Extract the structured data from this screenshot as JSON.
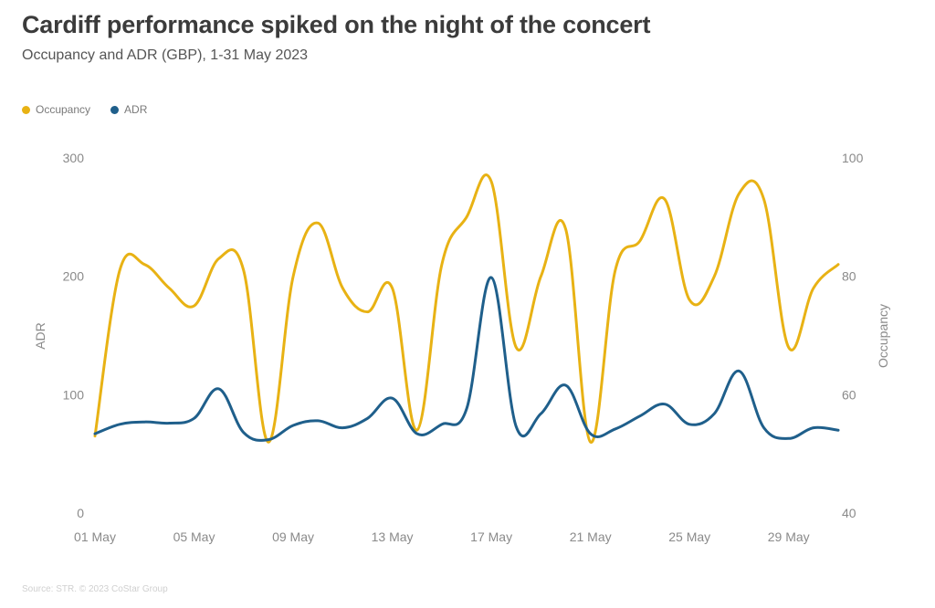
{
  "chart_data": {
    "type": "line",
    "title": "Cardiff performance spiked on the night of the concert",
    "subtitle": "Occupancy and ADR (GBP), 1-31 May 2023",
    "x": [
      "01 May",
      "02 May",
      "03 May",
      "04 May",
      "05 May",
      "06 May",
      "07 May",
      "08 May",
      "09 May",
      "10 May",
      "11 May",
      "12 May",
      "13 May",
      "14 May",
      "15 May",
      "16 May",
      "17 May",
      "18 May",
      "19 May",
      "20 May",
      "21 May",
      "22 May",
      "23 May",
      "24 May",
      "25 May",
      "26 May",
      "27 May",
      "28 May",
      "29 May",
      "30 May",
      "31 May"
    ],
    "x_tick_labels": [
      "01 May",
      "05 May",
      "09 May",
      "13 May",
      "17 May",
      "21 May",
      "25 May",
      "29 May"
    ],
    "series": [
      {
        "name": "Occupancy",
        "axis": "right",
        "color": "#E8B214",
        "values": [
          53,
          81,
          82,
          78,
          75,
          83,
          81,
          52,
          80,
          89,
          78,
          74,
          78,
          54,
          82,
          90,
          96,
          68,
          80,
          88,
          52,
          81,
          86,
          93,
          76,
          80,
          94,
          93,
          68,
          78,
          82
        ]
      },
      {
        "name": "ADR",
        "axis": "left",
        "color": "#1F5F8B",
        "values": [
          67,
          75,
          77,
          76,
          80,
          105,
          68,
          62,
          74,
          78,
          72,
          80,
          97,
          67,
          75,
          88,
          199,
          73,
          84,
          108,
          67,
          71,
          82,
          92,
          75,
          84,
          120,
          72,
          63,
          72,
          70
        ]
      }
    ],
    "y_left": {
      "label": "ADR",
      "ylim": [
        0,
        300
      ],
      "ticks": [
        "0",
        "100",
        "200",
        "300"
      ]
    },
    "y_right": {
      "label": "Occupancy",
      "ylim": [
        40,
        100
      ],
      "ticks": [
        "40",
        "60",
        "80",
        "100"
      ]
    },
    "grid": false,
    "legend_position": "top-left"
  },
  "footer": "Source: STR. © 2023 CoStar Group"
}
